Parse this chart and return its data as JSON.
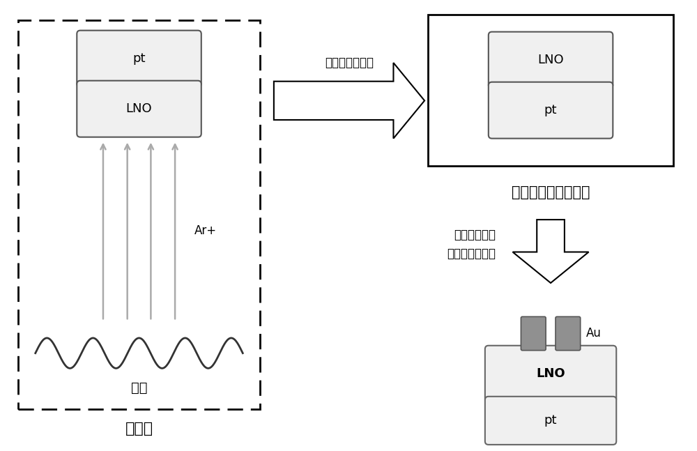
{
  "bg_color": "#ffffff",
  "text_color": "#000000",
  "box_fill": "#f0f0f0",
  "dark_gray": "#909090",
  "arrow_gray": "#aaaaaa",
  "label_keshi": "刻蚀仓",
  "label_dengsi": "灯丝",
  "label_arp": "Ar+",
  "label_step1": "氧空位引入过量",
  "label_step2": "管式炉进行氧气退火",
  "label_step3": "利用磁控技术\n镌上阵列金电极",
  "au_label": "Au"
}
